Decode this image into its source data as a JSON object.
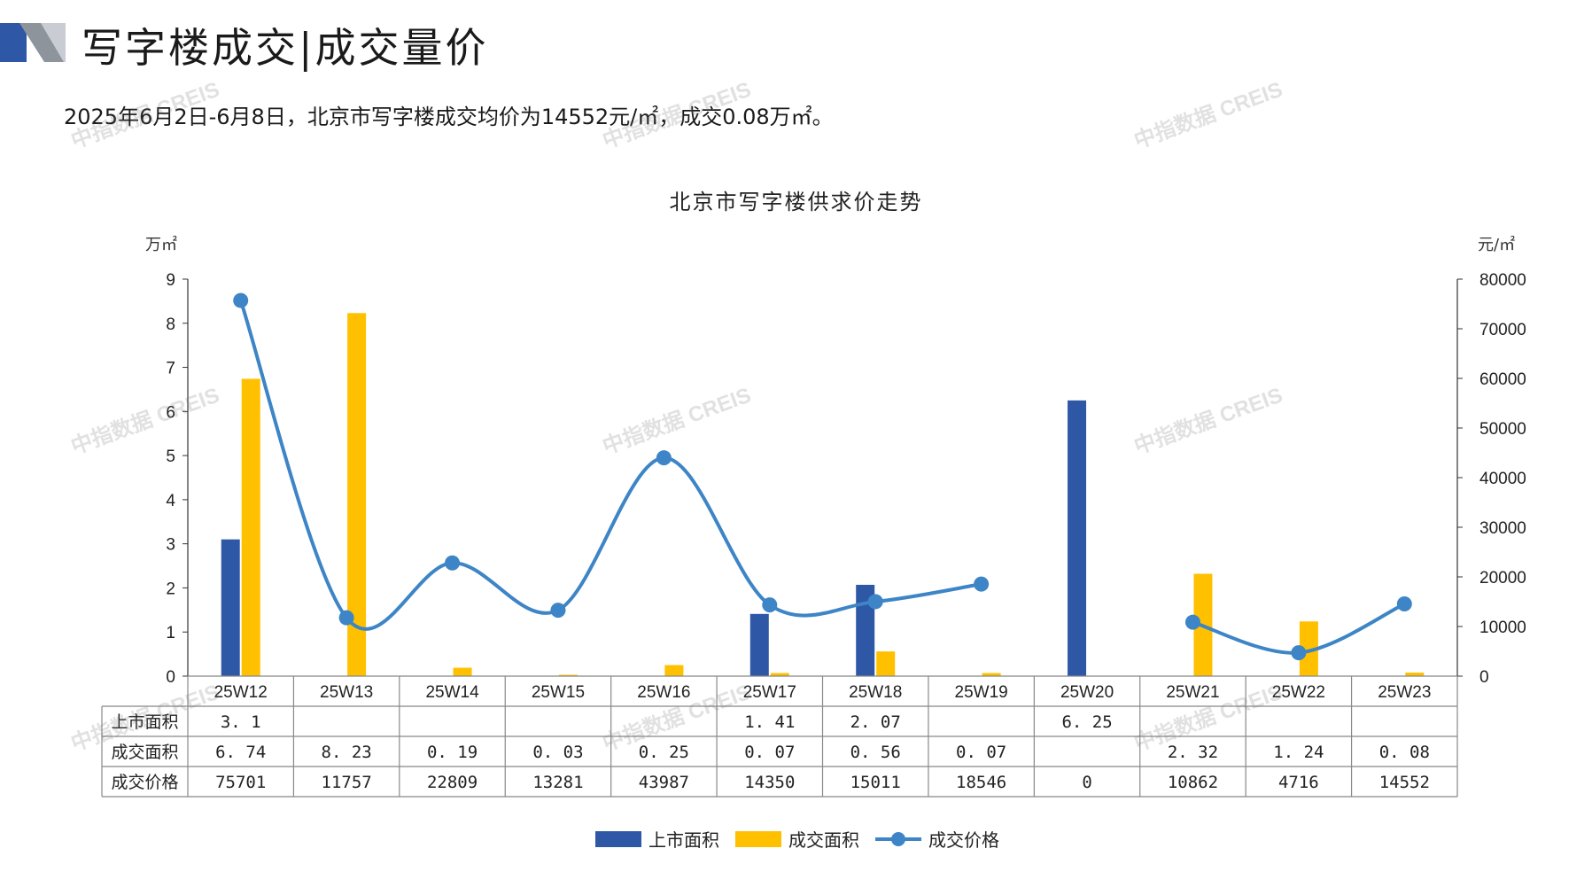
{
  "header": {
    "title": "写字楼成交|成交量价",
    "summary": "2025年6月2日-6月8日，北京市写字楼成交均价为14552元/㎡，成交0.08万㎡。"
  },
  "watermark": "中指数据 CREIS",
  "colors": {
    "listed": "#2E58A6",
    "traded": "#FFC000",
    "price": "#3D85C6",
    "logo_dark": "#2E58A6",
    "logo_gray": "#9AA0A8"
  },
  "chart_data": {
    "type": "bar",
    "title": "北京市写字楼供求价走势",
    "left_unit": "万㎡",
    "right_unit": "元/㎡",
    "categories": [
      "25W12",
      "25W13",
      "25W14",
      "25W15",
      "25W16",
      "25W17",
      "25W18",
      "25W19",
      "25W20",
      "25W21",
      "25W22",
      "25W23"
    ],
    "ylim_left": [
      0,
      9
    ],
    "yticks_left": [
      0,
      1,
      2,
      3,
      4,
      5,
      6,
      7,
      8,
      9
    ],
    "ylim_right": [
      0,
      80000
    ],
    "yticks_right": [
      0,
      10000,
      20000,
      30000,
      40000,
      50000,
      60000,
      70000,
      80000
    ],
    "series": [
      {
        "name": "上市面积",
        "kind": "bar",
        "axis": "left",
        "values": [
          3.1,
          null,
          null,
          null,
          null,
          1.41,
          2.07,
          null,
          6.25,
          null,
          null,
          null
        ],
        "labels": [
          "3. 1",
          "",
          "",
          "",
          "",
          "1. 41",
          "2. 07",
          "",
          "6. 25",
          "",
          "",
          ""
        ]
      },
      {
        "name": "成交面积",
        "kind": "bar",
        "axis": "left",
        "values": [
          6.74,
          8.23,
          0.19,
          0.03,
          0.25,
          0.07,
          0.56,
          0.07,
          null,
          2.32,
          1.24,
          0.08
        ],
        "labels": [
          "6. 74",
          "8. 23",
          "0. 19",
          "0. 03",
          "0. 25",
          "0. 07",
          "0. 56",
          "0. 07",
          "",
          "2. 32",
          "1. 24",
          "0. 08"
        ]
      },
      {
        "name": "成交价格",
        "kind": "line",
        "axis": "right",
        "values": [
          75701,
          11757,
          22809,
          13281,
          43987,
          14350,
          15011,
          18546,
          0,
          10862,
          4716,
          14552
        ],
        "labels": [
          "75701",
          "11757",
          "22809",
          "13281",
          "43987",
          "14350",
          "15011",
          "18546",
          "0",
          "10862",
          "4716",
          "14552"
        ]
      }
    ],
    "legend_position": "bottom"
  }
}
